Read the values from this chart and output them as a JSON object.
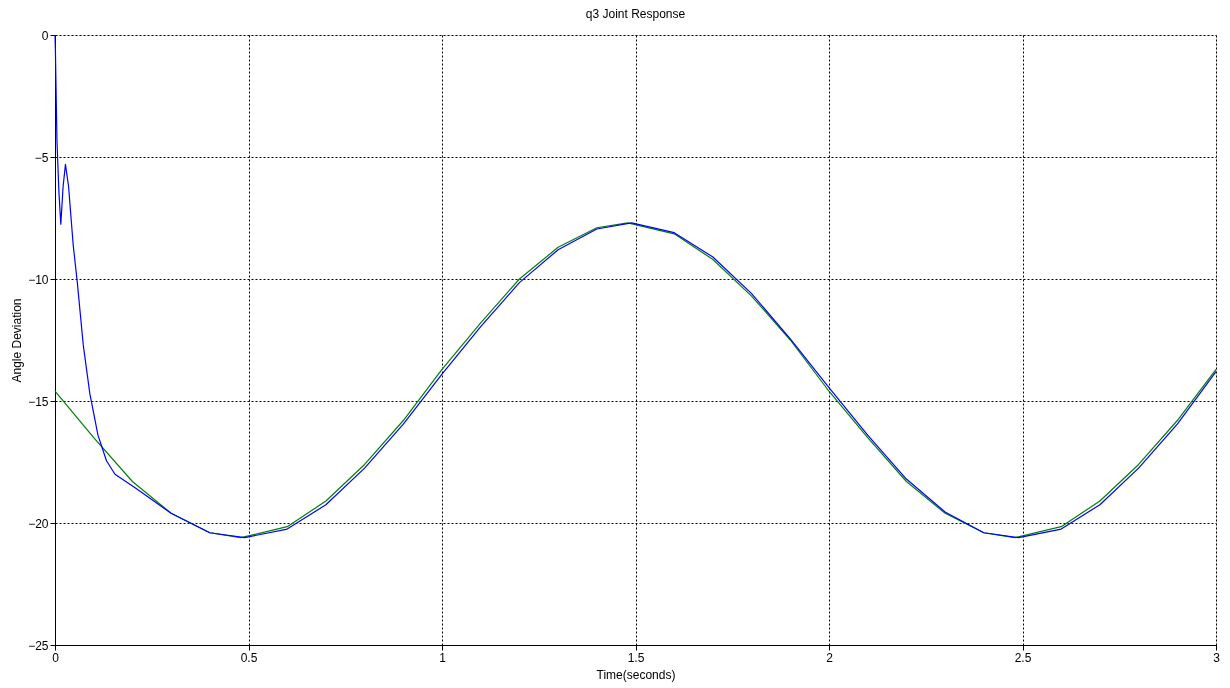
{
  "chart_data": {
    "type": "line",
    "title": "q3 Joint Response",
    "xlabel": "Time(seconds)",
    "ylabel": "Angle Deviation",
    "xlim": [
      0,
      3
    ],
    "xticks": [
      0,
      0.5,
      1,
      1.5,
      2,
      2.5,
      3
    ],
    "ylim": [
      -25,
      0
    ],
    "yticks": [
      -25,
      -20,
      -15,
      -10,
      -5,
      0
    ],
    "grid": true,
    "series": [
      {
        "color": "#008000",
        "x": [
          0,
          0.1,
          0.2,
          0.3,
          0.4,
          0.48,
          0.6,
          0.7,
          0.8,
          0.9,
          1.0,
          1.1,
          1.2,
          1.3,
          1.4,
          1.48,
          1.6,
          1.7,
          1.8,
          1.9,
          2.0,
          2.1,
          2.2,
          2.3,
          2.4,
          2.48,
          2.6,
          2.7,
          2.8,
          2.9,
          3.0
        ],
        "values": [
          -14.6,
          -16.5,
          -18.3,
          -19.6,
          -20.4,
          -20.6,
          -20.15,
          -19.1,
          -17.6,
          -15.8,
          -13.7,
          -11.8,
          -10.0,
          -8.7,
          -7.9,
          -7.7,
          -8.15,
          -9.2,
          -10.7,
          -12.5,
          -14.6,
          -16.5,
          -18.3,
          -19.6,
          -20.4,
          -20.6,
          -20.15,
          -19.1,
          -17.6,
          -15.8,
          -13.7
        ]
      },
      {
        "color": "#0000ff",
        "x": [
          0,
          0.001,
          0.005,
          0.01,
          0.015,
          0.021,
          0.027,
          0.035,
          0.047,
          0.058,
          0.073,
          0.09,
          0.111,
          0.133,
          0.155,
          0.206,
          0.3,
          0.4,
          0.49,
          0.6,
          0.7,
          0.8,
          0.9,
          1.0,
          1.1,
          1.2,
          1.3,
          1.4,
          1.49,
          1.6,
          1.7,
          1.8,
          1.9,
          2.0,
          2.1,
          2.2,
          2.3,
          2.4,
          2.49,
          2.6,
          2.7,
          2.8,
          2.9,
          3.0
        ],
        "values": [
          0,
          -0.6,
          -4.3,
          -6.4,
          -7.75,
          -6.2,
          -5.3,
          -6.2,
          -8.6,
          -10.2,
          -12.7,
          -14.7,
          -16.4,
          -17.45,
          -18.0,
          -18.55,
          -19.6,
          -20.4,
          -20.6,
          -20.25,
          -19.25,
          -17.75,
          -15.95,
          -13.9,
          -11.95,
          -10.15,
          -8.8,
          -7.95,
          -7.7,
          -8.1,
          -9.1,
          -10.6,
          -12.45,
          -14.45,
          -16.4,
          -18.2,
          -19.55,
          -20.4,
          -20.6,
          -20.25,
          -19.25,
          -17.75,
          -15.95,
          -13.8
        ]
      }
    ]
  }
}
